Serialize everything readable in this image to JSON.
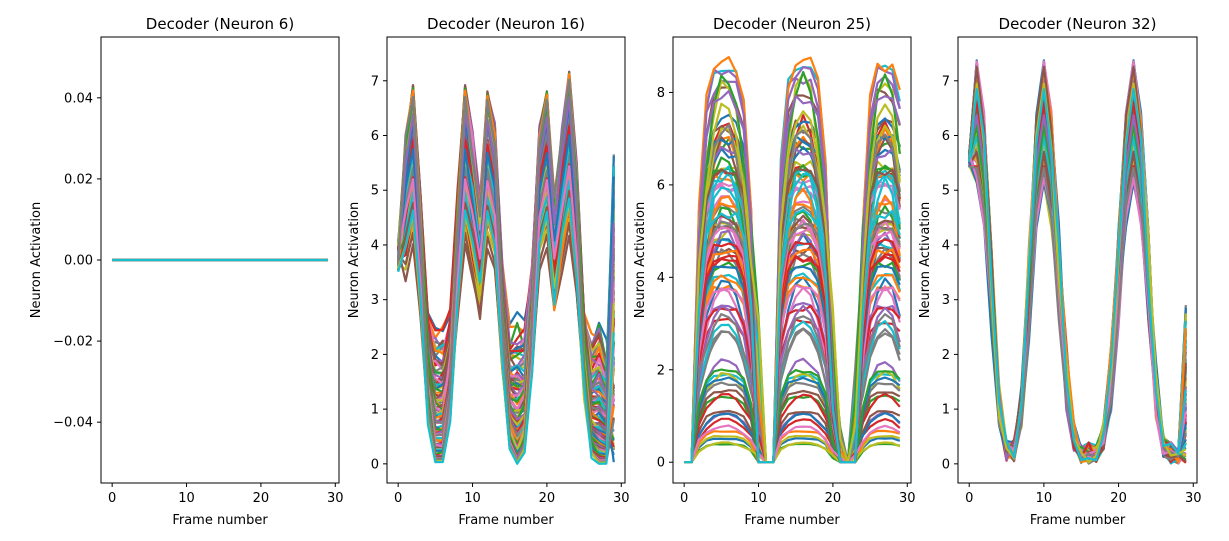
{
  "palette": [
    "#1f77b4",
    "#ff7f0e",
    "#2ca02c",
    "#d62728",
    "#9467bd",
    "#8c564b",
    "#e377c2",
    "#7f7f7f",
    "#bcbd22",
    "#17becf"
  ],
  "chart_data": [
    {
      "type": "line",
      "title": "Decoder (Neuron 6)",
      "xlabel": "Frame number",
      "ylabel": "Neuron Activation",
      "xlim": [
        -1.5,
        30.5
      ],
      "ylim": [
        -0.055,
        0.055
      ],
      "xticks": [
        0,
        10,
        20,
        30
      ],
      "yticks": [
        -0.04,
        -0.02,
        0.0,
        0.02,
        0.04
      ],
      "ytick_labels": [
        "−0.04",
        "−0.02",
        "0.00",
        "0.02",
        "0.04"
      ],
      "grid": false,
      "shape": {
        "kind": "flat",
        "n_series": 40,
        "frames": 30,
        "value": 0.0,
        "last_color": "#17becf"
      }
    },
    {
      "type": "line",
      "title": "Decoder (Neuron 16)",
      "xlabel": "Frame number",
      "ylabel": "Neuron Activation",
      "xlim": [
        -1.5,
        30.5
      ],
      "ylim": [
        -0.35,
        7.8
      ],
      "xticks": [
        0,
        10,
        20,
        30
      ],
      "yticks": [
        0,
        1,
        2,
        3,
        4,
        5,
        6,
        7
      ],
      "ytick_labels": [
        "0",
        "1",
        "2",
        "3",
        "4",
        "5",
        "6",
        "7"
      ],
      "grid": false,
      "shape": {
        "kind": "inverted_wave",
        "n_series": 90,
        "frames": 30,
        "phase_frames": [
          2,
          9,
          12.5,
          19.5,
          23
        ],
        "trough_frames": [
          5.5,
          16,
          27
        ],
        "peak_max": 7.4,
        "trough_max": 2.8,
        "start_value": 3.9,
        "end_max": 5.7,
        "floor": 0
      }
    },
    {
      "type": "line",
      "title": "Decoder (Neuron 25)",
      "xlabel": "Frame number",
      "ylabel": "Neuron Activation",
      "xlim": [
        -1.5,
        30.5
      ],
      "ylim": [
        -0.45,
        9.2
      ],
      "xticks": [
        0,
        10,
        20,
        30
      ],
      "yticks": [
        0,
        2,
        4,
        6,
        8
      ],
      "ytick_labels": [
        "0",
        "2",
        "4",
        "6",
        "8"
      ],
      "grid": false,
      "shape": {
        "kind": "humps",
        "n_series": 90,
        "frames": 30,
        "hump_ranges": [
          [
            1.5,
            10.5
          ],
          [
            12.5,
            21
          ],
          [
            22,
            29.5
          ]
        ],
        "hump_centers": [
          5.5,
          16,
          27
        ],
        "peak_max": 8.9,
        "floor": 0
      }
    },
    {
      "type": "line",
      "title": "Decoder (Neuron 32)",
      "xlabel": "Frame number",
      "ylabel": "Neuron Activation",
      "xlim": [
        -1.5,
        30.5
      ],
      "ylim": [
        -0.35,
        7.8
      ],
      "xticks": [
        0,
        10,
        20,
        30
      ],
      "yticks": [
        0,
        1,
        2,
        3,
        4,
        5,
        6,
        7
      ],
      "ytick_labels": [
        "0",
        "1",
        "2",
        "3",
        "4",
        "5",
        "6",
        "7"
      ],
      "grid": false,
      "shape": {
        "kind": "spikes",
        "n_series": 90,
        "frames": 30,
        "peak_frames": [
          1,
          10,
          22
        ],
        "trough_frames": [
          5.5,
          16,
          27
        ],
        "peak_max": 7.4,
        "start_value": 5.7,
        "end_max": 2.9,
        "floor": 0
      }
    }
  ]
}
